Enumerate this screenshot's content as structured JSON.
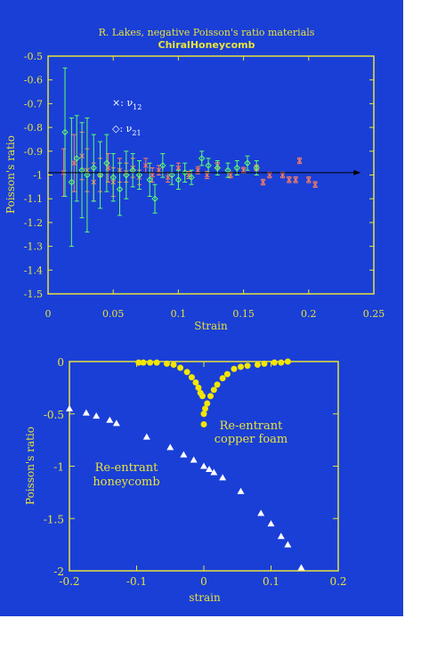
{
  "colors": {
    "background": "#1a3fd6",
    "axis": "#e8e33a",
    "text": "#e8e33a",
    "series_nu12": "#ff7f5f",
    "series_nu21": "#5fff6a",
    "marker_top": "#ffffff",
    "filled_circles": "#f3e600",
    "triangles": "#ffffff",
    "arrow": "#000000"
  },
  "chart_data": [
    {
      "type": "scatter",
      "title": "R. Lakes, negative Poisson's ratio materials",
      "subtitle": "ChiralHoneycomb",
      "xlabel": "Strain",
      "ylabel": "Poisson's ratio",
      "xlim": [
        0,
        0.25
      ],
      "ylim": [
        -1.5,
        -0.5
      ],
      "xticks": [
        "0",
        "0.05",
        "0.1",
        "0.15",
        "0.2",
        "0.25"
      ],
      "yticks": [
        "-0.5",
        "-0.6",
        "-0.7",
        "-0.8",
        "-0.9",
        "-1",
        "-1.1",
        "-1.2",
        "-1.3",
        "-1.4",
        "-1.5"
      ],
      "legend": [
        {
          "marker": "×:",
          "symbol": "ν",
          "sub": "12"
        },
        {
          "marker": "◇:",
          "symbol": "ν",
          "sub": "21"
        }
      ],
      "series": [
        {
          "name": "ν12",
          "marker": "x",
          "points": [
            {
              "x": 0.012,
              "y": -0.99,
              "err": 0.1
            },
            {
              "x": 0.02,
              "y": -0.95,
              "err": 0.12
            },
            {
              "x": 0.026,
              "y": -0.92,
              "err": 0.1
            },
            {
              "x": 0.03,
              "y": -0.98,
              "err": 0.09
            },
            {
              "x": 0.035,
              "y": -1.03,
              "err": 0.08
            },
            {
              "x": 0.04,
              "y": -1.0,
              "err": 0.07
            },
            {
              "x": 0.046,
              "y": -0.97,
              "err": 0.06
            },
            {
              "x": 0.05,
              "y": -1.03,
              "err": 0.06
            },
            {
              "x": 0.055,
              "y": -0.98,
              "err": 0.05
            },
            {
              "x": 0.06,
              "y": -0.99,
              "err": 0.04
            },
            {
              "x": 0.065,
              "y": -0.97,
              "err": 0.04
            },
            {
              "x": 0.07,
              "y": -1.01,
              "err": 0.03
            },
            {
              "x": 0.075,
              "y": -0.96,
              "err": 0.03
            },
            {
              "x": 0.08,
              "y": -1.0,
              "err": 0.03
            },
            {
              "x": 0.085,
              "y": -0.98,
              "err": 0.02
            },
            {
              "x": 0.092,
              "y": -1.01,
              "err": 0.02
            },
            {
              "x": 0.1,
              "y": -0.97,
              "err": 0.02
            },
            {
              "x": 0.108,
              "y": -1.0,
              "err": 0.015
            },
            {
              "x": 0.115,
              "y": -0.98,
              "err": 0.015
            },
            {
              "x": 0.122,
              "y": -1.0,
              "err": 0.015
            },
            {
              "x": 0.13,
              "y": -0.96,
              "err": 0.012
            },
            {
              "x": 0.14,
              "y": -1.0,
              "err": 0.012
            },
            {
              "x": 0.15,
              "y": -0.98,
              "err": 0.012
            },
            {
              "x": 0.16,
              "y": -0.97,
              "err": 0.012
            },
            {
              "x": 0.165,
              "y": -1.03,
              "err": 0.012
            },
            {
              "x": 0.17,
              "y": -1.0,
              "err": 0.012
            },
            {
              "x": 0.18,
              "y": -1.0,
              "err": 0.012
            },
            {
              "x": 0.185,
              "y": -1.02,
              "err": 0.012
            },
            {
              "x": 0.19,
              "y": -1.02,
              "err": 0.012
            },
            {
              "x": 0.193,
              "y": -0.94,
              "err": 0.012
            },
            {
              "x": 0.2,
              "y": -1.02,
              "err": 0.012
            },
            {
              "x": 0.205,
              "y": -1.04,
              "err": 0.012
            }
          ]
        },
        {
          "name": "ν21",
          "marker": "diamond",
          "points": [
            {
              "x": 0.013,
              "y": -0.82,
              "err": 0.27
            },
            {
              "x": 0.018,
              "y": -1.03,
              "err": 0.27
            },
            {
              "x": 0.022,
              "y": -0.93,
              "err": 0.18
            },
            {
              "x": 0.026,
              "y": -0.98,
              "err": 0.2
            },
            {
              "x": 0.03,
              "y": -1.0,
              "err": 0.24
            },
            {
              "x": 0.035,
              "y": -0.97,
              "err": 0.14
            },
            {
              "x": 0.04,
              "y": -1.0,
              "err": 0.14
            },
            {
              "x": 0.045,
              "y": -0.95,
              "err": 0.12
            },
            {
              "x": 0.05,
              "y": -1.01,
              "err": 0.1
            },
            {
              "x": 0.055,
              "y": -1.06,
              "err": 0.11
            },
            {
              "x": 0.06,
              "y": -1.0,
              "err": 0.1
            },
            {
              "x": 0.065,
              "y": -0.98,
              "err": 0.07
            },
            {
              "x": 0.07,
              "y": -1.0,
              "err": 0.06
            },
            {
              "x": 0.078,
              "y": -1.02,
              "err": 0.07
            },
            {
              "x": 0.082,
              "y": -1.1,
              "err": 0.06
            },
            {
              "x": 0.088,
              "y": -0.96,
              "err": 0.05
            },
            {
              "x": 0.095,
              "y": -1.0,
              "err": 0.04
            },
            {
              "x": 0.1,
              "y": -1.02,
              "err": 0.04
            },
            {
              "x": 0.105,
              "y": -0.99,
              "err": 0.04
            },
            {
              "x": 0.11,
              "y": -1.01,
              "err": 0.03
            },
            {
              "x": 0.118,
              "y": -0.93,
              "err": 0.03
            },
            {
              "x": 0.123,
              "y": -0.96,
              "err": 0.03
            },
            {
              "x": 0.13,
              "y": -0.97,
              "err": 0.03
            },
            {
              "x": 0.138,
              "y": -0.98,
              "err": 0.03
            },
            {
              "x": 0.145,
              "y": -0.97,
              "err": 0.03
            },
            {
              "x": 0.153,
              "y": -0.95,
              "err": 0.03
            },
            {
              "x": 0.16,
              "y": -0.97,
              "err": 0.03
            }
          ]
        }
      ],
      "reference_line": {
        "y": -0.99,
        "x_start": 0,
        "x_end": 0.24
      }
    },
    {
      "type": "scatter",
      "xlabel": "strain",
      "ylabel": "Poisson's ratio",
      "xlim": [
        -0.2,
        0.2
      ],
      "ylim": [
        -2,
        0
      ],
      "xticks": [
        "-0.2",
        "-0.1",
        "0",
        "0.1",
        "0.2"
      ],
      "yticks": [
        "0",
        "-0.5",
        "-1",
        "-1.5",
        "-2"
      ],
      "annotations": {
        "foam_line1": "Re-entrant",
        "foam_line2": "copper foam",
        "honeycomb_line1": "Re-entrant",
        "honeycomb_line2": "honeycomb"
      },
      "series": [
        {
          "name": "Re-entrant copper foam",
          "marker": "circle",
          "points": [
            {
              "x": -0.097,
              "y": -0.01
            },
            {
              "x": -0.09,
              "y": -0.01
            },
            {
              "x": -0.08,
              "y": -0.01
            },
            {
              "x": -0.07,
              "y": -0.01
            },
            {
              "x": -0.055,
              "y": -0.02
            },
            {
              "x": -0.045,
              "y": -0.03
            },
            {
              "x": -0.035,
              "y": -0.06
            },
            {
              "x": -0.025,
              "y": -0.1
            },
            {
              "x": -0.018,
              "y": -0.15
            },
            {
              "x": -0.012,
              "y": -0.2
            },
            {
              "x": -0.008,
              "y": -0.25
            },
            {
              "x": -0.005,
              "y": -0.3
            },
            {
              "x": -0.002,
              "y": -0.33
            },
            {
              "x": 0.0,
              "y": -0.5
            },
            {
              "x": 0.002,
              "y": -0.45
            },
            {
              "x": 0.005,
              "y": -0.4
            },
            {
              "x": 0.01,
              "y": -0.33
            },
            {
              "x": 0.015,
              "y": -0.27
            },
            {
              "x": 0.02,
              "y": -0.22
            },
            {
              "x": 0.028,
              "y": -0.16
            },
            {
              "x": 0.035,
              "y": -0.12
            },
            {
              "x": 0.045,
              "y": -0.07
            },
            {
              "x": 0.055,
              "y": -0.05
            },
            {
              "x": 0.065,
              "y": -0.04
            },
            {
              "x": 0.08,
              "y": -0.03
            },
            {
              "x": 0.09,
              "y": -0.02
            },
            {
              "x": 0.105,
              "y": -0.01
            },
            {
              "x": 0.115,
              "y": -0.01
            },
            {
              "x": 0.125,
              "y": -0.0
            },
            {
              "x": 0.0,
              "y": -0.6
            }
          ]
        },
        {
          "name": "Re-entrant honeycomb",
          "marker": "triangle",
          "points": [
            {
              "x": -0.2,
              "y": -0.45
            },
            {
              "x": -0.175,
              "y": -0.49
            },
            {
              "x": -0.16,
              "y": -0.52
            },
            {
              "x": -0.14,
              "y": -0.56
            },
            {
              "x": -0.13,
              "y": -0.59
            },
            {
              "x": -0.085,
              "y": -0.72
            },
            {
              "x": -0.05,
              "y": -0.82
            },
            {
              "x": -0.03,
              "y": -0.89
            },
            {
              "x": -0.015,
              "y": -0.94
            },
            {
              "x": 0.0,
              "y": -1.0
            },
            {
              "x": 0.008,
              "y": -1.03
            },
            {
              "x": 0.015,
              "y": -1.06
            },
            {
              "x": 0.028,
              "y": -1.11
            },
            {
              "x": 0.055,
              "y": -1.24
            },
            {
              "x": 0.085,
              "y": -1.45
            },
            {
              "x": 0.1,
              "y": -1.55
            },
            {
              "x": 0.115,
              "y": -1.67
            },
            {
              "x": 0.125,
              "y": -1.75
            },
            {
              "x": 0.145,
              "y": -1.97
            }
          ]
        }
      ]
    }
  ]
}
